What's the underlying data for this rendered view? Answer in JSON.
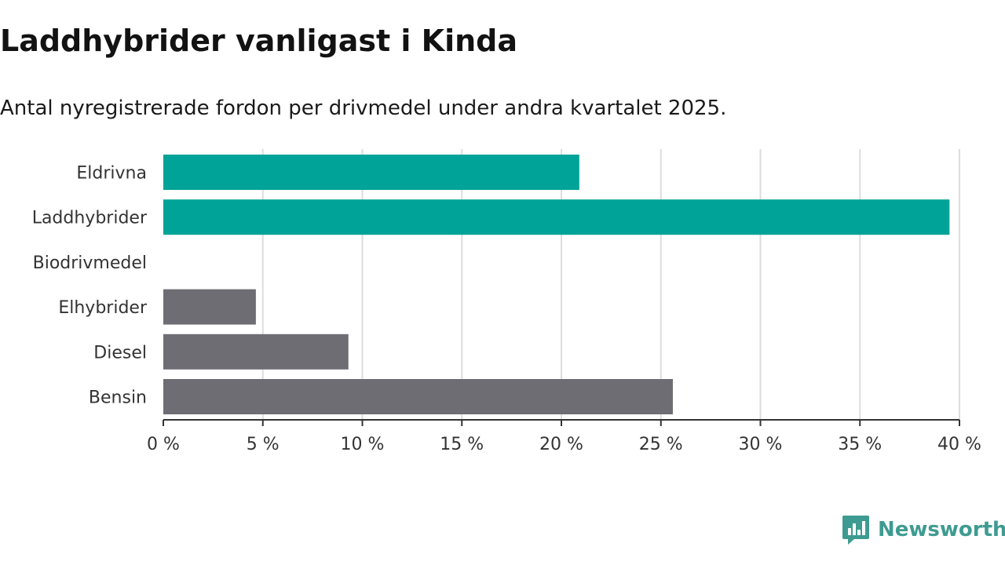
{
  "chart_data": {
    "type": "bar",
    "orientation": "horizontal",
    "title": "Laddhybrider vanligast i Kinda",
    "subtitle": "Antal nyregistrerade fordon per drivmedel under andra kvartalet 2025.",
    "categories": [
      "Eldrivna",
      "Laddhybrider",
      "Biodrivmedel",
      "Elhybrider",
      "Diesel",
      "Bensin"
    ],
    "values": [
      20.9,
      39.5,
      0,
      4.65,
      9.3,
      25.6
    ],
    "highlighted": [
      true,
      true,
      false,
      false,
      false,
      false
    ],
    "xlim": [
      0,
      40
    ],
    "xticks": [
      0,
      5,
      10,
      15,
      20,
      25,
      30,
      35,
      40
    ],
    "tick_suffix": " %",
    "grid": true,
    "legend": "none",
    "colors": {
      "highlight": "#00a398",
      "default": "#6e6d73",
      "grid": "#dddddd",
      "axis": "#333333",
      "label": "#333333"
    }
  },
  "branding": {
    "name": "Newsworthy",
    "icon": "newsworthy-logo-icon",
    "color": "#3e9b91"
  }
}
